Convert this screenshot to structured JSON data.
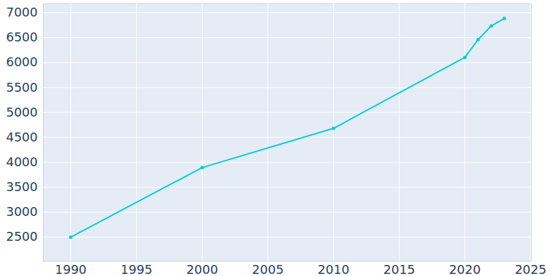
{
  "chart_data": {
    "type": "line",
    "x": [
      1990,
      2000,
      2010,
      2020,
      2021,
      2022,
      2023
    ],
    "values": [
      2497,
      3893,
      4680,
      6105,
      6460,
      6735,
      6885
    ],
    "color": "#00ced1",
    "marker": "circle",
    "grid": true,
    "xlim": [
      1987.9,
      2025.05
    ],
    "xticks": [
      1990,
      1995,
      2000,
      2005,
      2010,
      2015,
      2020,
      2025
    ],
    "ylim": [
      2015,
      7180
    ],
    "yticks": [
      2500,
      3000,
      3500,
      4000,
      4500,
      5000,
      5500,
      6000,
      6500,
      7000
    ]
  }
}
